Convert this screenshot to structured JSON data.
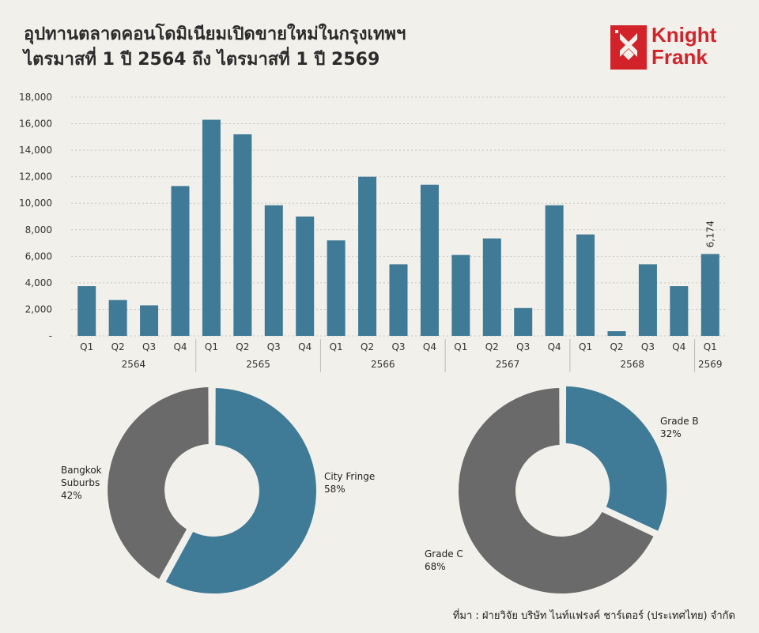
{
  "title": {
    "line1": "อุปทานตลาดคอนโดมิเนียมเปิดขายใหม่ในกรุงเทพฯ",
    "line2": "ไตรมาสที่ 1 ปี 2564 ถึง ไตรมาสที่ 1 ปี 2569"
  },
  "logo": {
    "word1": "Knight",
    "word2": "Frank",
    "icon": "knight-frank-diamond-logo"
  },
  "colors": {
    "blue": "#3f7a96",
    "gray": "#6a6a6a",
    "brand": "#d2232a"
  },
  "chart_data": [
    {
      "type": "bar",
      "categories": [
        "Q1",
        "Q2",
        "Q3",
        "Q4",
        "Q1",
        "Q2",
        "Q3",
        "Q4",
        "Q1",
        "Q2",
        "Q3",
        "Q4",
        "Q1",
        "Q2",
        "Q3",
        "Q4",
        "Q1",
        "Q2",
        "Q3",
        "Q4",
        "Q1"
      ],
      "groups": [
        {
          "label": "2564",
          "count": 4
        },
        {
          "label": "2565",
          "count": 4
        },
        {
          "label": "2566",
          "count": 4
        },
        {
          "label": "2567",
          "count": 4
        },
        {
          "label": "2568",
          "count": 4
        },
        {
          "label": "2569",
          "count": 1
        }
      ],
      "values": [
        3750,
        2700,
        2300,
        11300,
        16300,
        15200,
        9850,
        9000,
        7200,
        12000,
        5400,
        11400,
        6100,
        7350,
        2100,
        9850,
        7650,
        350,
        5400,
        3750,
        6174
      ],
      "data_labels": [
        {
          "index": 20,
          "text": "6,174"
        }
      ],
      "ylim": [
        0,
        18000
      ],
      "yticks": [
        "-",
        "2,000",
        "4,000",
        "6,000",
        "8,000",
        "10,000",
        "12,000",
        "14,000",
        "16,000",
        "18,000"
      ],
      "grid": true
    },
    {
      "type": "pie",
      "donut": true,
      "slices": [
        {
          "label": "City Fringe",
          "pct_text": "58%",
          "value": 58
        },
        {
          "label": "Bangkok Suburbs",
          "label_lines": [
            "Bangkok",
            "Suburbs"
          ],
          "pct_text": "42%",
          "value": 42
        }
      ]
    },
    {
      "type": "pie",
      "donut": true,
      "slices": [
        {
          "label": "Grade B",
          "pct_text": "32%",
          "value": 32
        },
        {
          "label": "Grade C",
          "pct_text": "68%",
          "value": 68
        }
      ]
    }
  ],
  "source": "ที่มา : ฝ่ายวิจัย บริษัท ไนท์แฟรงค์ ชาร์เตอร์ (ประเทศไทย) จำกัด"
}
